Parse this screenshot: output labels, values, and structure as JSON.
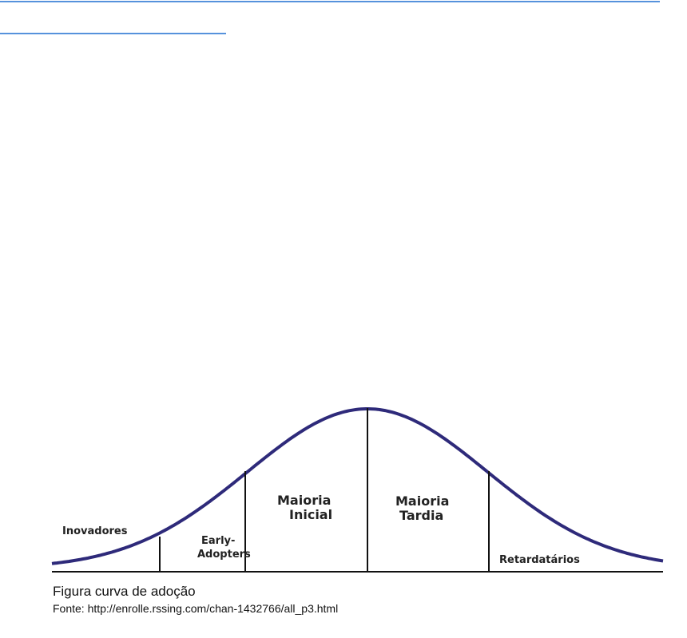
{
  "diagram": {
    "segments": [
      {
        "lines": [
          "Inovadores"
        ]
      },
      {
        "lines": [
          "Early-",
          "Adopters"
        ]
      },
      {
        "lines": [
          "Maioria",
          "Inicial"
        ]
      },
      {
        "lines": [
          "Maioria",
          "Tardia"
        ]
      },
      {
        "lines": [
          "Retardatários"
        ]
      }
    ]
  },
  "caption": {
    "title": "Figura curva de adoção",
    "source": "Fonte: http://enrolle.rssing.com/chan-1432766/all_p3.html"
  }
}
